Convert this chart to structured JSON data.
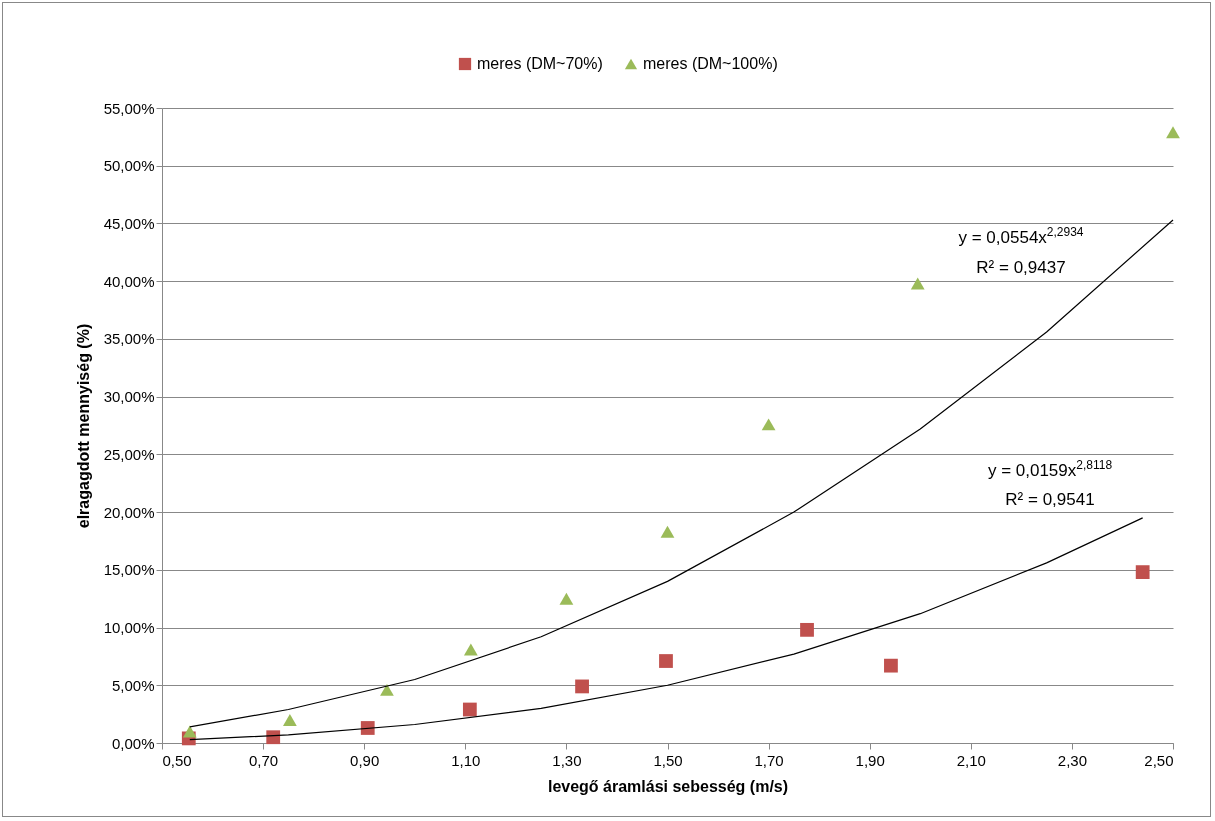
{
  "chart_data": {
    "type": "scatter",
    "xlabel": "levegő áramlási sebesség (m/s)",
    "ylabel": "elragagdott mennyiség (%)",
    "xlim": [
      0.5,
      2.5
    ],
    "xticks": [
      {
        "value": 0.5,
        "label": "0,50"
      },
      {
        "value": 0.7,
        "label": "0,70"
      },
      {
        "value": 0.9,
        "label": "0,90"
      },
      {
        "value": 1.1,
        "label": "1,10"
      },
      {
        "value": 1.3,
        "label": "1,30"
      },
      {
        "value": 1.5,
        "label": "1,50"
      },
      {
        "value": 1.7,
        "label": "1,70"
      },
      {
        "value": 1.9,
        "label": "1,90"
      },
      {
        "value": 2.1,
        "label": "2,10"
      },
      {
        "value": 2.3,
        "label": "2,30"
      },
      {
        "value": 2.5,
        "label": "2,50"
      }
    ],
    "ylim": [
      0,
      55
    ],
    "yticks": [
      {
        "value": 0,
        "label": "0,00%"
      },
      {
        "value": 5,
        "label": "5,00%"
      },
      {
        "value": 10,
        "label": "10,00%"
      },
      {
        "value": 15,
        "label": "15,00%"
      },
      {
        "value": 20,
        "label": "20,00%"
      },
      {
        "value": 25,
        "label": "25,00%"
      },
      {
        "value": 30,
        "label": "30,00%"
      },
      {
        "value": 35,
        "label": "35,00%"
      },
      {
        "value": 40,
        "label": "40,00%"
      },
      {
        "value": 45,
        "label": "45,00%"
      },
      {
        "value": 50,
        "label": "50,00%"
      },
      {
        "value": 55,
        "label": "55,00%"
      }
    ],
    "grid": "y",
    "legend": "top",
    "series": [
      {
        "name": "meres (DM~70%)",
        "color": "#c0504d",
        "marker": "square",
        "x": [
          0.553,
          0.72,
          0.907,
          1.109,
          1.331,
          1.497,
          1.776,
          1.942,
          2.44
        ],
        "values": [
          0.4,
          0.5,
          1.3,
          2.9,
          4.9,
          7.1,
          9.8,
          6.7,
          14.8
        ]
      },
      {
        "name": "meres (DM~100%)",
        "color": "#9bbb59",
        "marker": "triangle",
        "x": [
          0.555,
          0.753,
          0.945,
          1.111,
          1.3,
          1.5,
          1.7,
          1.995,
          2.5
        ],
        "values": [
          1.0,
          2.0,
          4.6,
          8.1,
          12.5,
          18.3,
          27.6,
          39.8,
          52.9
        ]
      },
      {
        "type": "line",
        "color": "#000000",
        "marker": "none",
        "x": [
          0.555,
          0.75,
          1.0,
          1.25,
          1.5,
          1.75,
          2.0,
          2.25,
          2.44
        ],
        "values": [
          0.3,
          0.7,
          1.6,
          3.0,
          5.0,
          7.7,
          11.2,
          15.6,
          19.5
        ]
      },
      {
        "type": "line",
        "color": "#000000",
        "marker": "none",
        "x": [
          0.555,
          0.75,
          1.0,
          1.25,
          1.5,
          1.75,
          2.0,
          2.25,
          2.5
        ],
        "values": [
          1.4,
          2.9,
          5.5,
          9.2,
          14.0,
          20.0,
          27.2,
          35.6,
          45.3
        ]
      }
    ],
    "annotations": [
      "y = 0,0554x$^{2,2934}$",
      "R² = 0,9437",
      "y = 0,0159x$^{2,8118}$",
      "R² = 0,9541"
    ]
  }
}
